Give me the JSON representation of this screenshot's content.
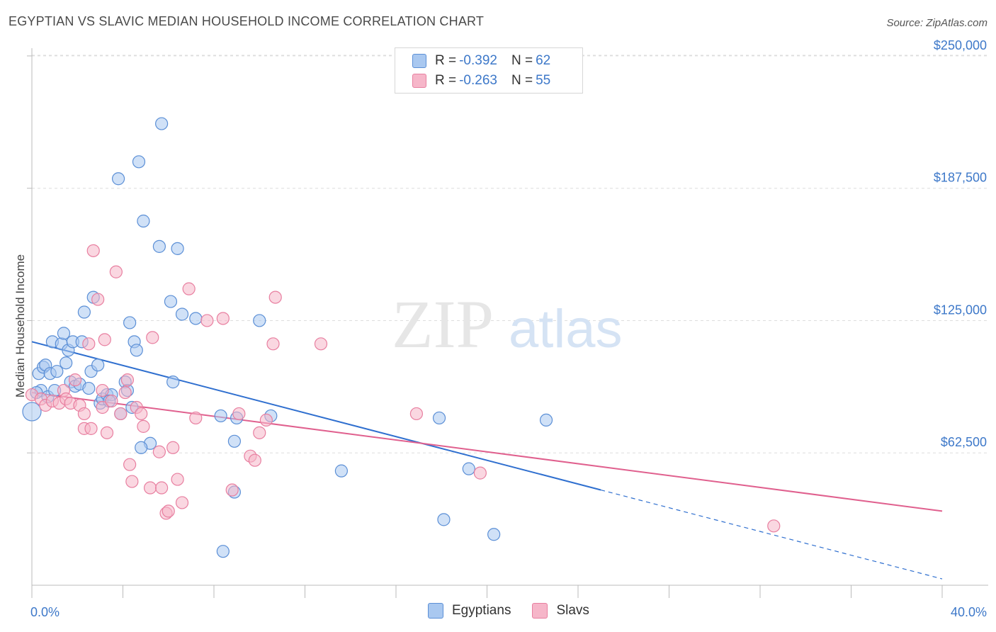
{
  "header": {
    "title": "EGYPTIAN VS SLAVIC MEDIAN HOUSEHOLD INCOME CORRELATION CHART",
    "source": "Source: ZipAtlas.com"
  },
  "watermark": {
    "zip": "ZIP",
    "atlas": "atlas"
  },
  "legend": {
    "rows": [
      {
        "r_label": "R =",
        "r_value": "-0.392",
        "n_label": "N =",
        "n_value": "62"
      },
      {
        "r_label": "R =",
        "r_value": "-0.263",
        "n_label": "N =",
        "n_value": "55"
      }
    ]
  },
  "bottom_legend": {
    "items": [
      "Egyptians",
      "Slavs"
    ]
  },
  "colors": {
    "egyptians_fill": "#a9c8f0",
    "egyptians_stroke": "#5b8fd6",
    "egyptians_line": "#2f6fcf",
    "slavs_fill": "#f6b6c9",
    "slavs_stroke": "#e87fa0",
    "slavs_line": "#e0608e",
    "tick_label": "#3d78c9",
    "grid": "#dddddd"
  },
  "chart_data": {
    "type": "scatter",
    "title": "EGYPTIAN VS SLAVIC MEDIAN HOUSEHOLD INCOME CORRELATION CHART",
    "ylabel": "Median Household Income",
    "xlabel": "",
    "xlim": [
      0,
      40
    ],
    "ylim": [
      0,
      257000
    ],
    "x_tick_labels": [
      "0.0%",
      "40.0%"
    ],
    "y_ticks": [
      62500,
      125000,
      187500,
      250000
    ],
    "y_tick_labels": [
      "$62,500",
      "$125,000",
      "$187,500",
      "$250,000"
    ],
    "grid": "horizontal dashed",
    "series": [
      {
        "name": "Egyptians",
        "points": [
          [
            0.0,
            82000
          ],
          [
            0.3,
            100000
          ],
          [
            0.4,
            92000
          ],
          [
            0.5,
            103000
          ],
          [
            0.6,
            104000
          ],
          [
            0.8,
            100000
          ],
          [
            0.9,
            115000
          ],
          [
            1.1,
            101000
          ],
          [
            1.3,
            114000
          ],
          [
            1.4,
            119000
          ],
          [
            1.5,
            105000
          ],
          [
            1.6,
            111000
          ],
          [
            1.7,
            96000
          ],
          [
            1.8,
            115000
          ],
          [
            1.9,
            94000
          ],
          [
            2.1,
            95000
          ],
          [
            2.2,
            115000
          ],
          [
            2.3,
            129000
          ],
          [
            2.5,
            93000
          ],
          [
            2.6,
            101000
          ],
          [
            2.7,
            136000
          ],
          [
            2.9,
            104000
          ],
          [
            3.0,
            86000
          ],
          [
            3.1,
            88000
          ],
          [
            3.3,
            90000
          ],
          [
            3.5,
            90000
          ],
          [
            4.1,
            96000
          ],
          [
            3.8,
            192000
          ],
          [
            3.9,
            81000
          ],
          [
            4.2,
            92000
          ],
          [
            4.3,
            124000
          ],
          [
            4.4,
            84000
          ],
          [
            4.5,
            115000
          ],
          [
            4.6,
            111000
          ],
          [
            4.7,
            200000
          ],
          [
            4.9,
            172000
          ],
          [
            5.2,
            67000
          ],
          [
            5.6,
            160000
          ],
          [
            5.7,
            218000
          ],
          [
            6.1,
            134000
          ],
          [
            6.2,
            96000
          ],
          [
            6.4,
            159000
          ],
          [
            6.6,
            128000
          ],
          [
            7.2,
            126000
          ],
          [
            8.3,
            80000
          ],
          [
            8.4,
            16000
          ],
          [
            8.9,
            68000
          ],
          [
            8.9,
            44000
          ],
          [
            9.0,
            79000
          ],
          [
            10.0,
            125000
          ],
          [
            10.5,
            80000
          ],
          [
            13.6,
            54000
          ],
          [
            17.9,
            79000
          ],
          [
            18.1,
            31000
          ],
          [
            19.2,
            55000
          ],
          [
            20.3,
            24000
          ],
          [
            22.6,
            78000
          ],
          [
            0.2,
            91000
          ],
          [
            0.7,
            89000
          ],
          [
            1.0,
            92000
          ],
          [
            3.4,
            87000
          ],
          [
            4.8,
            65000
          ]
        ],
        "trend": {
          "x": [
            0,
            25
          ],
          "y": [
            115000,
            45000
          ],
          "extended_to": [
            40,
            3000
          ]
        }
      },
      {
        "name": "Slavs",
        "points": [
          [
            0.0,
            90000
          ],
          [
            0.4,
            88000
          ],
          [
            0.6,
            85000
          ],
          [
            0.9,
            87000
          ],
          [
            1.2,
            86000
          ],
          [
            1.4,
            92000
          ],
          [
            1.5,
            88000
          ],
          [
            1.7,
            86000
          ],
          [
            1.9,
            97000
          ],
          [
            2.1,
            85000
          ],
          [
            2.3,
            74000
          ],
          [
            2.3,
            81000
          ],
          [
            2.5,
            114000
          ],
          [
            2.6,
            74000
          ],
          [
            2.7,
            158000
          ],
          [
            2.9,
            135000
          ],
          [
            3.1,
            84000
          ],
          [
            3.1,
            92000
          ],
          [
            3.2,
            116000
          ],
          [
            3.3,
            72000
          ],
          [
            3.5,
            87000
          ],
          [
            3.7,
            148000
          ],
          [
            3.9,
            81000
          ],
          [
            4.1,
            91000
          ],
          [
            4.2,
            97000
          ],
          [
            4.3,
            57000
          ],
          [
            4.4,
            49000
          ],
          [
            4.6,
            84000
          ],
          [
            4.8,
            81000
          ],
          [
            4.9,
            75000
          ],
          [
            5.2,
            46000
          ],
          [
            5.3,
            117000
          ],
          [
            5.6,
            63000
          ],
          [
            5.7,
            46000
          ],
          [
            5.9,
            34000
          ],
          [
            6.0,
            35000
          ],
          [
            6.2,
            65000
          ],
          [
            6.4,
            50000
          ],
          [
            6.6,
            39000
          ],
          [
            6.9,
            140000
          ],
          [
            7.2,
            79000
          ],
          [
            7.7,
            125000
          ],
          [
            8.4,
            126000
          ],
          [
            8.8,
            45000
          ],
          [
            9.1,
            81000
          ],
          [
            9.6,
            61000
          ],
          [
            9.8,
            59000
          ],
          [
            10.0,
            72000
          ],
          [
            10.3,
            78000
          ],
          [
            10.6,
            114000
          ],
          [
            10.7,
            136000
          ],
          [
            12.7,
            114000
          ],
          [
            16.9,
            81000
          ],
          [
            19.7,
            53000
          ],
          [
            32.6,
            28000
          ]
        ],
        "trend": {
          "x": [
            0,
            40
          ],
          "y": [
            91000,
            35000
          ]
        }
      }
    ]
  }
}
